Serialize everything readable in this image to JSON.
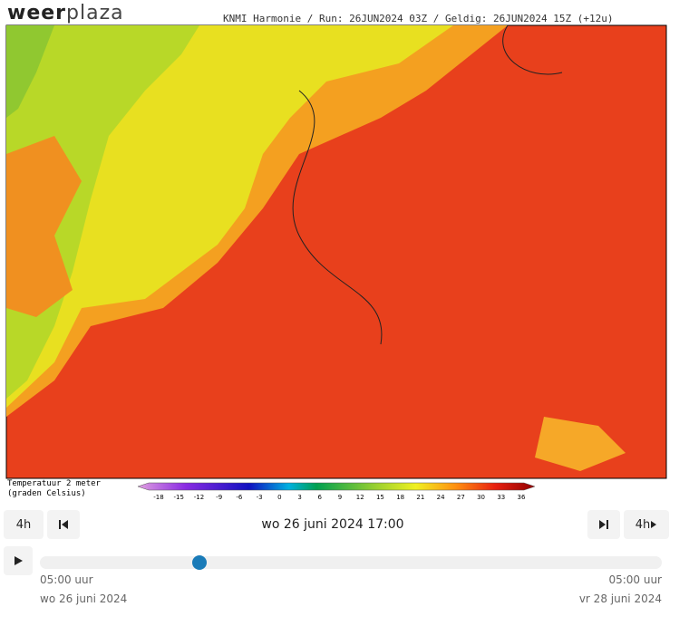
{
  "header": {
    "logo_bold": "weer",
    "logo_light": "plaza",
    "run_info": "KNMI Harmonie / Run: 26JUN2024 03Z / Geldig: 26JUN2024 15Z (+12u)"
  },
  "legend": {
    "title_line1": "Temperatuur 2 meter",
    "title_line2": "(graden Celsius)",
    "ticks": [
      "-18",
      "-15",
      "-12",
      "-9",
      "-6",
      "-3",
      "0",
      "3",
      "6",
      "9",
      "12",
      "15",
      "18",
      "21",
      "24",
      "27",
      "30",
      "33",
      "36"
    ]
  },
  "controls": {
    "step_back": "4h",
    "step_forward": "4h",
    "current_time": "wo 26 juni 2024 17:00",
    "start_time": "05:00 uur",
    "start_date": "wo 26 juni 2024",
    "end_time": "05:00 uur",
    "end_date": "vr 28 juni 2024"
  }
}
